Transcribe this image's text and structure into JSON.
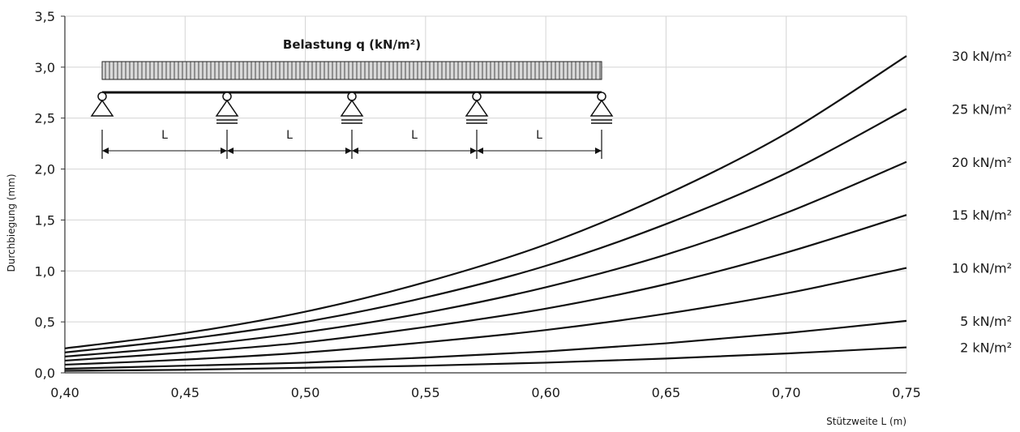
{
  "chart_data": {
    "type": "line",
    "title": "",
    "xlabel": "Stützweite L (m)",
    "ylabel": "Durchbiegung (mm)",
    "xlim": [
      0.4,
      0.75
    ],
    "ylim": [
      0.0,
      3.5
    ],
    "x_ticks": [
      "0,40",
      "0,45",
      "0,50",
      "0,55",
      "0,60",
      "0,65",
      "0,70",
      "0,75"
    ],
    "y_ticks": [
      "0,0",
      "0,5",
      "1,0",
      "1,5",
      "2,0",
      "2,5",
      "3,0",
      "3,5"
    ],
    "grid": true,
    "legend": "right",
    "x": [
      0.4,
      0.45,
      0.5,
      0.55,
      0.6,
      0.65,
      0.7,
      0.75
    ],
    "series": [
      {
        "name": "30 kN/m²",
        "values": [
          0.24,
          0.39,
          0.6,
          0.89,
          1.26,
          1.75,
          2.35,
          3.11
        ]
      },
      {
        "name": "25 kN/m²",
        "values": [
          0.2,
          0.33,
          0.5,
          0.74,
          1.05,
          1.46,
          1.96,
          2.59
        ]
      },
      {
        "name": "20 kN/m²",
        "values": [
          0.16,
          0.26,
          0.4,
          0.59,
          0.84,
          1.16,
          1.57,
          2.07
        ]
      },
      {
        "name": "15 kN/m²",
        "values": [
          0.12,
          0.2,
          0.3,
          0.45,
          0.63,
          0.87,
          1.18,
          1.55
        ]
      },
      {
        "name": "10 kN/m²",
        "values": [
          0.08,
          0.13,
          0.2,
          0.3,
          0.42,
          0.58,
          0.78,
          1.03
        ]
      },
      {
        "name": "5 kN/m²",
        "values": [
          0.04,
          0.07,
          0.1,
          0.15,
          0.21,
          0.29,
          0.39,
          0.51
        ]
      },
      {
        "name": "2 kN/m²",
        "values": [
          0.02,
          0.03,
          0.05,
          0.07,
          0.1,
          0.14,
          0.19,
          0.25
        ]
      }
    ],
    "inset": {
      "title": "Belastung q (kN/m²)",
      "span_label": "L",
      "spans": 4
    }
  }
}
